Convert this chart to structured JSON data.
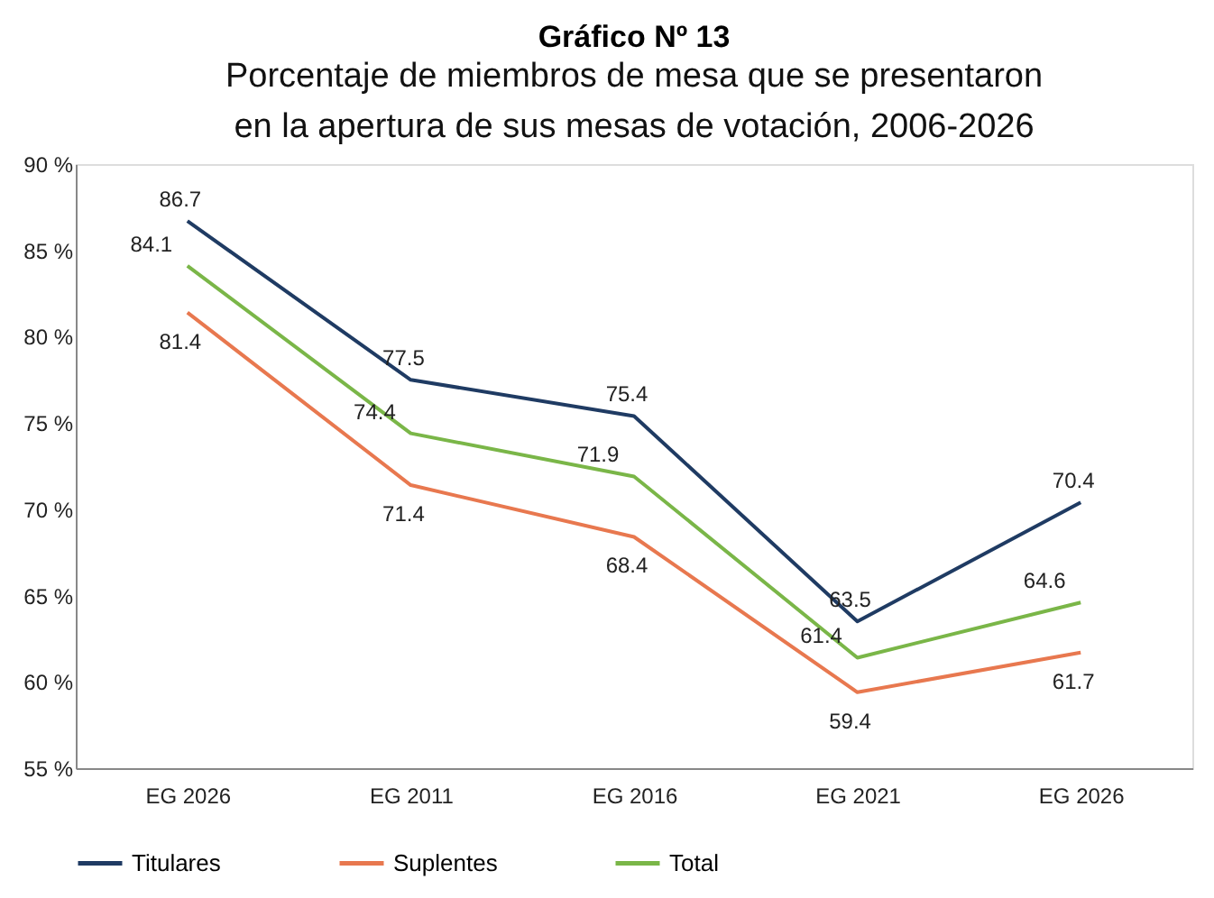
{
  "chart_data": {
    "type": "line",
    "title": "Gráfico Nº 13",
    "subtitle": "Porcentaje de miembros de mesa que se presentaron en la apertura de sus mesas de votación, 2006-2026",
    "categories": [
      "EG 2026",
      "EG 2011",
      "EG 2016",
      "EG 2021",
      "EG 2026"
    ],
    "series": [
      {
        "name": "Titulares",
        "color": "#1f3b63",
        "values": [
          86.7,
          77.5,
          75.4,
          63.5,
          70.4
        ]
      },
      {
        "name": "Suplentes",
        "color": "#e8784f",
        "values": [
          81.4,
          71.4,
          68.4,
          59.4,
          61.7
        ]
      },
      {
        "name": "Total",
        "color": "#7ab648",
        "values": [
          84.1,
          74.4,
          71.9,
          61.4,
          64.6
        ]
      }
    ],
    "ylim": [
      55,
      90
    ],
    "yticks": [
      {
        "value": 55,
        "label": "55 %"
      },
      {
        "value": 60,
        "label": "60 %"
      },
      {
        "value": 65,
        "label": "65 %"
      },
      {
        "value": 70,
        "label": "70 %"
      },
      {
        "value": 75,
        "label": "75 %"
      },
      {
        "value": 80,
        "label": "80 %"
      },
      {
        "value": 85,
        "label": "85 %"
      },
      {
        "value": 90,
        "label": "90 %"
      }
    ],
    "data_labels": true,
    "grid": false,
    "legend": "bottom",
    "marker": "none",
    "line_style": "solid"
  }
}
